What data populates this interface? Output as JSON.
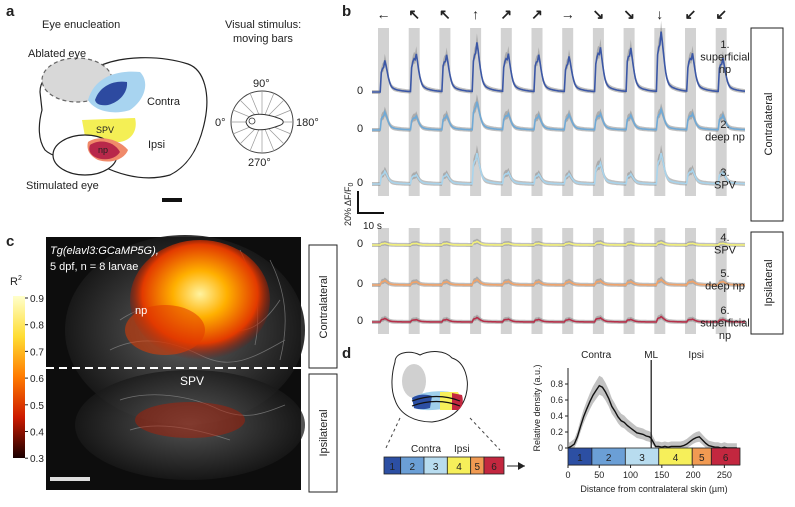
{
  "panels": {
    "a": {
      "letter": "a",
      "eye_enucleation": "Eye enucleation",
      "visual_stimulus_line1": "Visual stimulus:",
      "visual_stimulus_line2": "moving bars",
      "ablated_eye": "Ablated eye",
      "stimulated_eye": "Stimulated eye",
      "contra": "Contra",
      "ipsi": "Ipsi",
      "spv": "SPV",
      "np": "np",
      "angle_90": "90°",
      "angle_0": "0°",
      "angle_180": "180°",
      "angle_270": "270°"
    },
    "b": {
      "letter": "b",
      "arrows": [
        "←",
        "↖",
        "↖",
        "↑",
        "↗",
        "↗",
        "→",
        "↘",
        "↘",
        "↓",
        "↙",
        "↙"
      ],
      "zero": "0",
      "labels": [
        {
          "line1": "1.",
          "line2": "superficial",
          "line3": "np"
        },
        {
          "line1": "2.",
          "line2": "deep np",
          "line3": ""
        },
        {
          "line1": "3.",
          "line2": "SPV",
          "line3": ""
        },
        {
          "line1": "4.",
          "line2": "SPV",
          "line3": ""
        },
        {
          "line1": "5.",
          "line2": "deep np",
          "line3": ""
        },
        {
          "line1": "6.",
          "line2": "superficial",
          "line3": "np"
        }
      ],
      "group_contralateral": "Contralateral",
      "group_ipsilateral": "Ipsilateral",
      "scale_y": "20% ΔF/F",
      "scale_y_sub": "0",
      "scale_x": "10 s",
      "trace_colors": [
        "#3b57a6",
        "#6fa9d6",
        "#a9d4ec",
        "#f2f07a",
        "#f0a36a",
        "#b5304a"
      ]
    },
    "c": {
      "letter": "c",
      "title_line1": "Tg(elavl3:GCaMP5G),",
      "title_line2": "5 dpf, n = 8 larvae",
      "np": "np",
      "spv": "SPV",
      "colorbar_title": "R",
      "colorbar_sup": "2",
      "colorbar_ticks": [
        "0.9",
        "0.8",
        "0.7",
        "0.6",
        "0.5",
        "0.4",
        "0.3"
      ],
      "contralateral": "Contralateral",
      "ipsilateral": "Ipsilateral"
    },
    "d": {
      "letter": "d",
      "contra": "Contra",
      "ipsi": "Ipsi",
      "strip_numbers": [
        "1",
        "2",
        "3",
        "4",
        "5",
        "6"
      ],
      "strip_colors": [
        "#2c4fa3",
        "#6b9fd6",
        "#b8dcef",
        "#f6ef5a",
        "#f19a52",
        "#c3273f"
      ],
      "strip_widths": [
        1,
        1.4,
        1.4,
        1.4,
        0.8,
        1.2
      ]
    }
  },
  "chart_data": {
    "type": "line",
    "title": "",
    "xlabel": "Distance from contralateral skin (µm)",
    "ylabel": "Relative density (a.u.)",
    "xlim": [
      0,
      275
    ],
    "ylim": [
      0,
      1
    ],
    "x_ticks": [
      "0",
      "50",
      "100",
      "150",
      "200",
      "250"
    ],
    "y_ticks": [
      "0",
      "0.2",
      "0.4",
      "0.6",
      "0.8"
    ],
    "region_labels": [
      "Contra",
      "ML",
      "Ipsi"
    ],
    "midline_x": 133,
    "series": [
      {
        "x": [
          0,
          5,
          10,
          15,
          20,
          25,
          30,
          35,
          40,
          45,
          50,
          55,
          60,
          65,
          70,
          75,
          80,
          85,
          90,
          95,
          100,
          105,
          110,
          115,
          120,
          125,
          130,
          133,
          140,
          145,
          150,
          155,
          160,
          165,
          170,
          175,
          180,
          185,
          190,
          195,
          200,
          205,
          210,
          215,
          220,
          225,
          230,
          235,
          240,
          245,
          250,
          255,
          260,
          265,
          270
        ],
        "y": [
          0.0,
          0.02,
          0.05,
          0.14,
          0.27,
          0.39,
          0.49,
          0.58,
          0.66,
          0.72,
          0.78,
          0.76,
          0.7,
          0.62,
          0.52,
          0.46,
          0.39,
          0.34,
          0.32,
          0.28,
          0.25,
          0.22,
          0.19,
          0.18,
          0.17,
          0.15,
          0.14,
          0.12,
          0.02,
          0.02,
          0.01,
          0.02,
          0.01,
          0.02,
          0.02,
          0.02,
          0.02,
          0.03,
          0.05,
          0.08,
          0.11,
          0.13,
          0.14,
          0.1,
          0.06,
          0.03,
          0.02,
          0.01,
          0.01,
          0.0,
          0.01,
          0.0,
          0.0,
          0.0,
          0.0
        ]
      }
    ]
  }
}
